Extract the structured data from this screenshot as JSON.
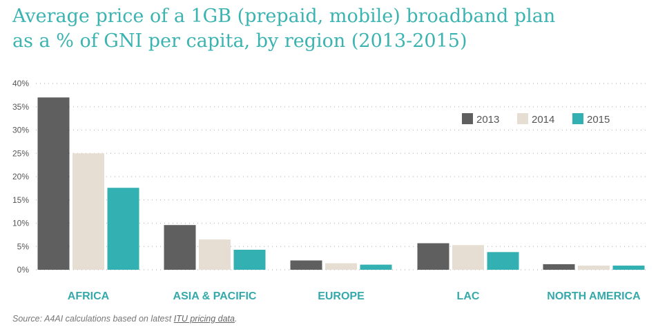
{
  "title": {
    "line1": "Average price of a 1GB (prepaid, mobile) broadband plan",
    "line2": "as a % of GNI per capita, by region (2013-2015)"
  },
  "source": {
    "prefix": "Source: A4AI calculations based on latest ",
    "link": "ITU pricing data",
    "suffix": "."
  },
  "colors": {
    "title": "#3bb3b0",
    "series_2013": "#5f5f5f",
    "series_2014": "#e6ded2",
    "series_2015": "#33b1b2",
    "category_label": "#35a9aa",
    "tick_label": "#555555",
    "grid": "#bbbbbb"
  },
  "chart_data": {
    "type": "bar",
    "categories": [
      "AFRICA",
      "ASIA & PACIFIC",
      "EUROPE",
      "LAC",
      "NORTH AMERICA"
    ],
    "series": [
      {
        "name": "2013",
        "values": [
          37.0,
          9.6,
          2.0,
          5.7,
          1.2
        ]
      },
      {
        "name": "2014",
        "values": [
          25.0,
          6.5,
          1.4,
          5.3,
          0.9
        ]
      },
      {
        "name": "2015",
        "values": [
          17.6,
          4.3,
          1.1,
          3.8,
          0.9
        ]
      }
    ],
    "ylim": [
      0,
      40
    ],
    "yticks": [
      0,
      5,
      10,
      15,
      20,
      25,
      30,
      35,
      40
    ],
    "ytick_labels": [
      "0%",
      "5%",
      "10%",
      "15%",
      "20%",
      "25%",
      "30%",
      "35%",
      "40%"
    ],
    "grid": true,
    "legend_position": "top-right"
  }
}
